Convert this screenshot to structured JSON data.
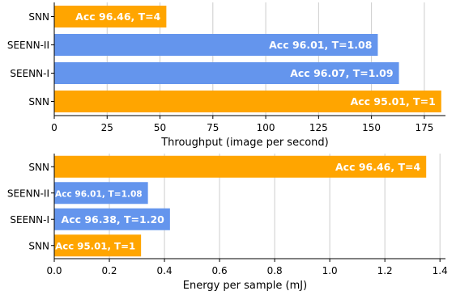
{
  "chart_data": [
    {
      "type": "bar",
      "orientation": "horizontal",
      "xlabel": "Throughput (image per second)",
      "ylabel": "",
      "xlim": [
        0,
        185
      ],
      "xticks": [
        0,
        25,
        50,
        75,
        100,
        125,
        150,
        175
      ],
      "grid": "vertical",
      "bars": [
        {
          "category": "SNN",
          "value": 53,
          "label": "Acc 96.46, T=4",
          "color": "#FFA500"
        },
        {
          "category": "SEENN-II",
          "value": 153,
          "label": "Acc 96.01, T=1.08",
          "color": "#6495ED"
        },
        {
          "category": "SEENN-I",
          "value": 163,
          "label": "Acc 96.07, T=1.09",
          "color": "#6495ED"
        },
        {
          "category": "SNN",
          "value": 183,
          "label": "Acc 95.01, T=1",
          "color": "#FFA500"
        }
      ]
    },
    {
      "type": "bar",
      "orientation": "horizontal",
      "xlabel": "Energy per sample (mJ)",
      "ylabel": "",
      "xlim": [
        0,
        1.42
      ],
      "xticks": [
        0.0,
        0.2,
        0.4,
        0.6,
        0.8,
        1.0,
        1.2,
        1.4
      ],
      "grid": "vertical",
      "bars": [
        {
          "category": "SNN",
          "value": 1.35,
          "label": "Acc 96.46, T=4",
          "color": "#FFA500"
        },
        {
          "category": "SEENN-II",
          "value": 0.34,
          "label": "Acc 96.01, T=1.08",
          "color": "#6495ED"
        },
        {
          "category": "SEENN-I",
          "value": 0.42,
          "label": "Acc 96.38, T=1.20",
          "color": "#6495ED"
        },
        {
          "category": "SNN",
          "value": 0.315,
          "label": "Acc 95.01, T=1",
          "color": "#FFA500"
        }
      ]
    }
  ]
}
